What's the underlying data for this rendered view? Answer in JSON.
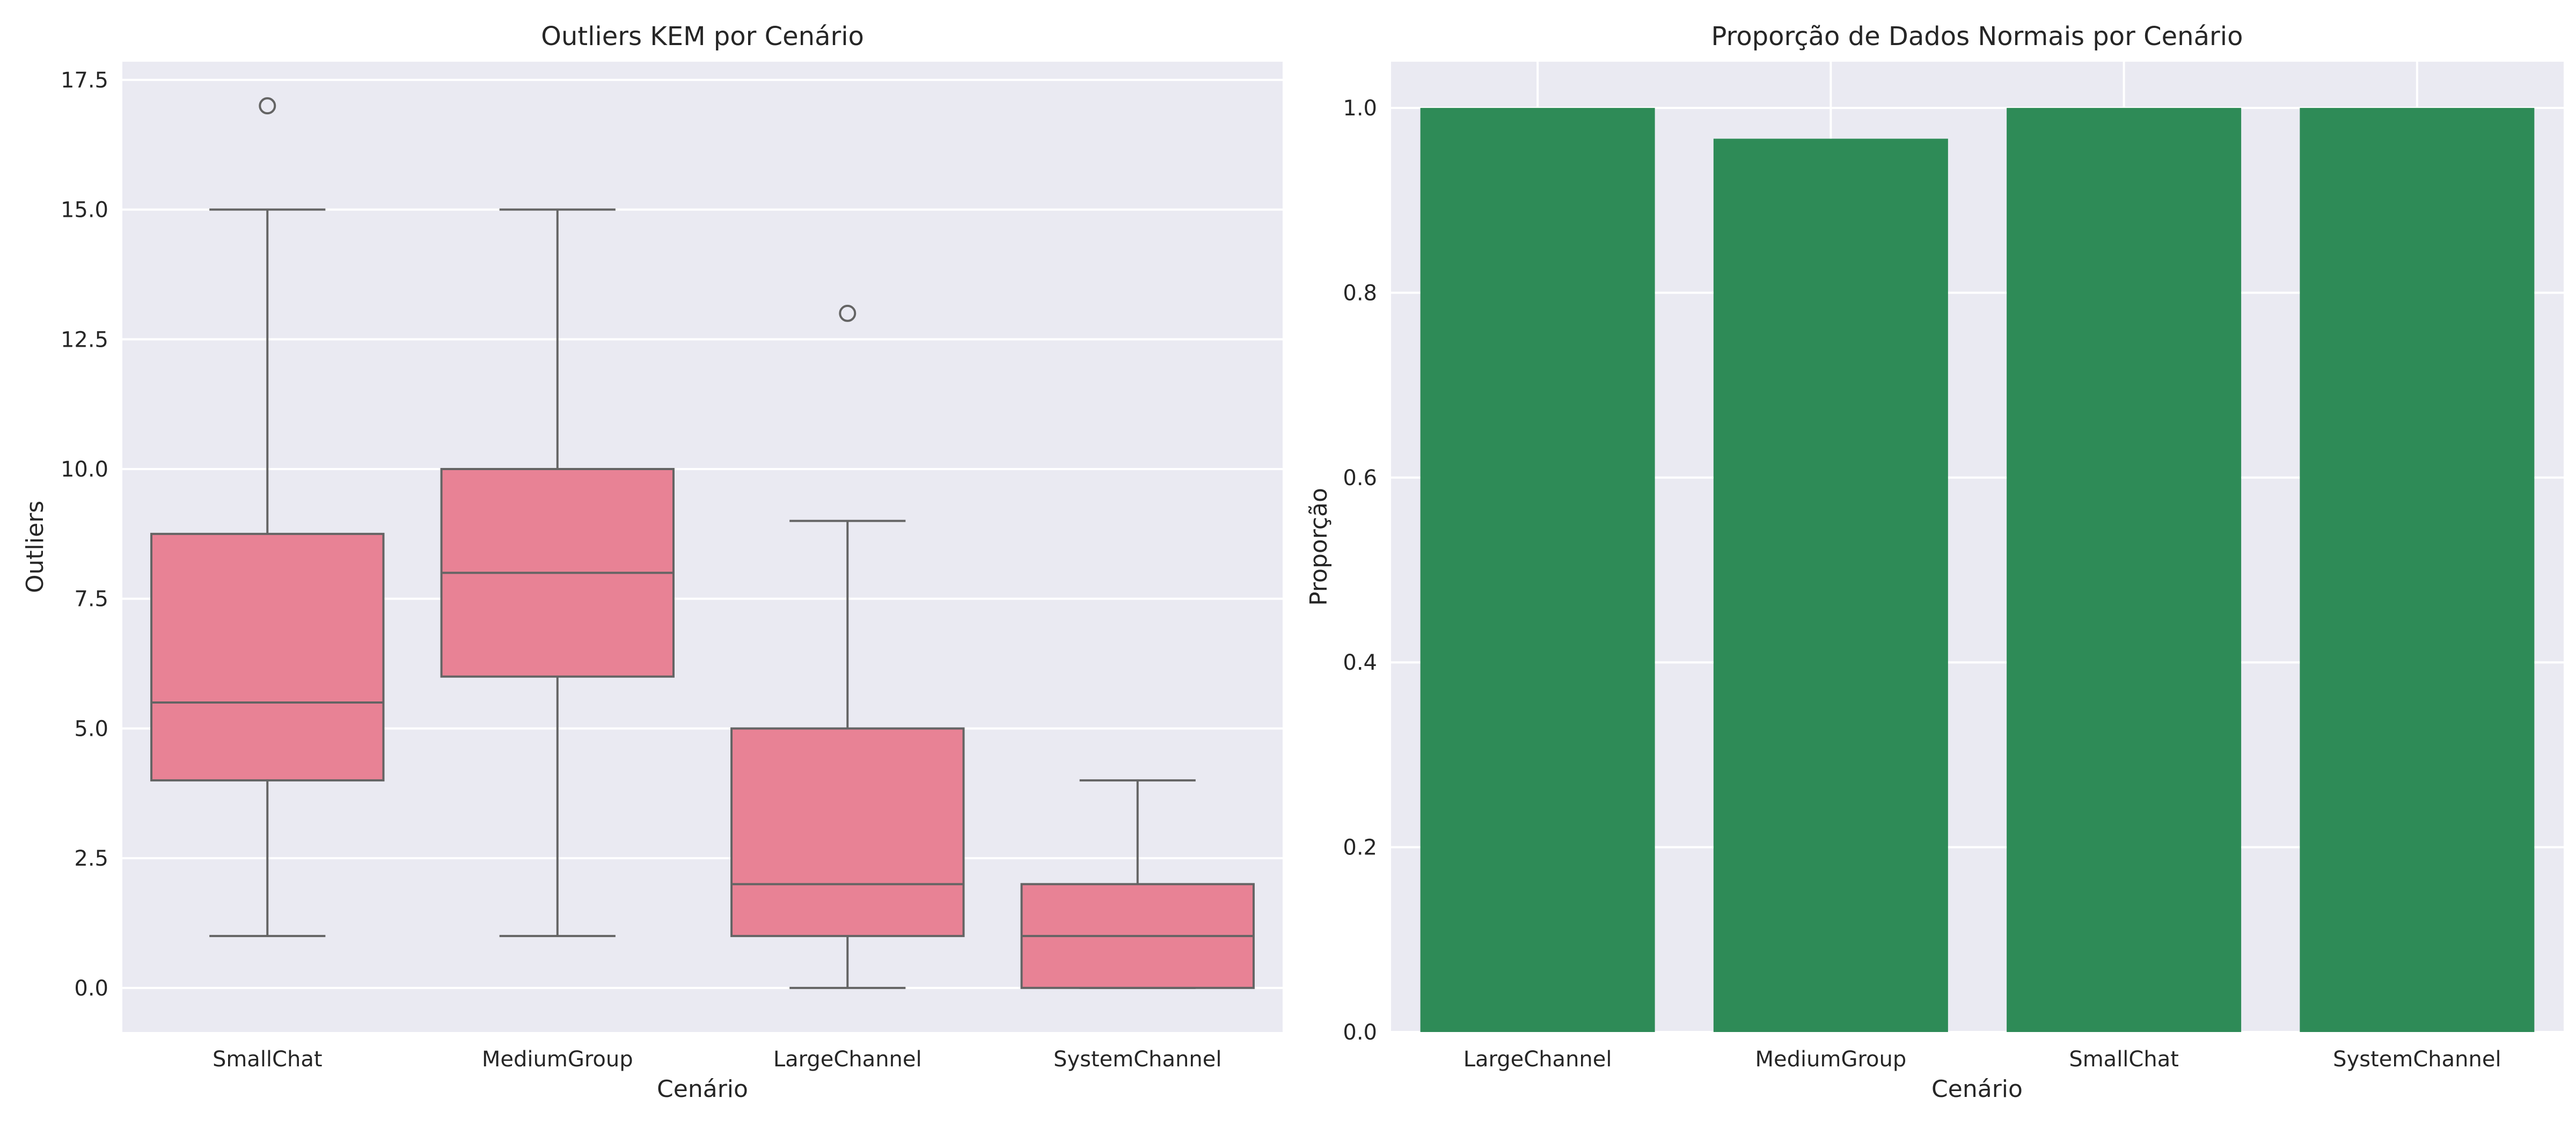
{
  "chart_data": [
    {
      "type": "box",
      "title": "Outliers KEM por Cenário",
      "xlabel": "Cenário",
      "ylabel": "Outliers",
      "ylim": [
        -0.85,
        17.85
      ],
      "yticks": [
        0.0,
        2.5,
        5.0,
        7.5,
        10.0,
        12.5,
        15.0,
        17.5
      ],
      "ytick_labels": [
        "0.0",
        "2.5",
        "5.0",
        "7.5",
        "10.0",
        "12.5",
        "15.0",
        "17.5"
      ],
      "grid": true,
      "color": "#e88295",
      "categories": [
        "SmallChat",
        "MediumGroup",
        "LargeChannel",
        "SystemChannel"
      ],
      "boxes": [
        {
          "q1": 4.0,
          "median": 5.5,
          "q3": 8.75,
          "whisker_low": 1.0,
          "whisker_high": 15.0,
          "outliers": [
            17.0
          ]
        },
        {
          "q1": 6.0,
          "median": 8.0,
          "q3": 10.0,
          "whisker_low": 1.0,
          "whisker_high": 15.0,
          "outliers": []
        },
        {
          "q1": 1.0,
          "median": 2.0,
          "q3": 5.0,
          "whisker_low": 0.0,
          "whisker_high": 9.0,
          "outliers": [
            13.0
          ]
        },
        {
          "q1": 0.0,
          "median": 1.0,
          "q3": 2.0,
          "whisker_low": 0.0,
          "whisker_high": 4.0,
          "outliers": []
        }
      ]
    },
    {
      "type": "bar",
      "title": "Proporção de Dados Normais por Cenário",
      "xlabel": "Cenário",
      "ylabel": "Proporção",
      "ylim": [
        0.0,
        1.05
      ],
      "yticks": [
        0.0,
        0.2,
        0.4,
        0.6,
        0.8,
        1.0
      ],
      "ytick_labels": [
        "0.0",
        "0.2",
        "0.4",
        "0.6",
        "0.8",
        "1.0"
      ],
      "grid": true,
      "color": "#2e8b57",
      "categories": [
        "LargeChannel",
        "MediumGroup",
        "SmallChat",
        "SystemChannel"
      ],
      "values": [
        1.0,
        0.9667,
        1.0,
        1.0
      ]
    }
  ]
}
